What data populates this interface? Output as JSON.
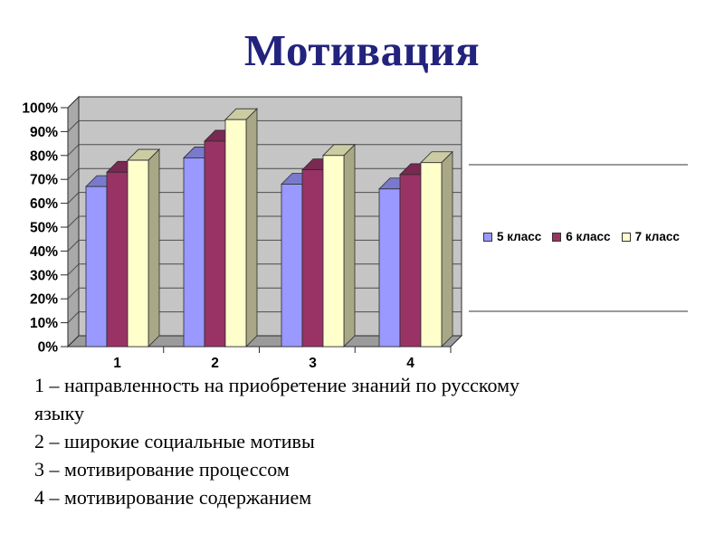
{
  "title": {
    "text": "Мотивация",
    "color": "#23237e"
  },
  "chart_data": {
    "type": "bar",
    "style": "3d-clustered-column",
    "title": "",
    "xlabel": "",
    "ylabel": "",
    "categories": [
      "1",
      "2",
      "3",
      "4"
    ],
    "series": [
      {
        "name": "5 класс",
        "color": "#9999ff",
        "values": [
          67,
          79,
          68,
          66
        ]
      },
      {
        "name": "6 класс",
        "color": "#993366",
        "values": [
          73,
          86,
          74,
          72
        ]
      },
      {
        "name": "7 класс",
        "color": "#ffffcc",
        "values": [
          78,
          95,
          80,
          77
        ]
      }
    ],
    "ylim": [
      0,
      100
    ],
    "ytick_step": 10,
    "ytick_suffix": "%",
    "grid": true,
    "legend_position": "right-middle",
    "colors": {
      "wall": "#c5c5c5",
      "side_wall": "#a9a9a9",
      "floor": "#9b9b9b",
      "edge": "#2b2b2b",
      "grid": "#4d4d4d"
    }
  },
  "notes": {
    "items": [
      "1 – направленность на приобретение знаний по русскому\nязыку",
      "2 – широкие социальные мотивы",
      "3 – мотивирование процессом",
      "4 – мотивирование содержанием"
    ]
  },
  "decor": {
    "divider_color": "#9a9a9a"
  }
}
